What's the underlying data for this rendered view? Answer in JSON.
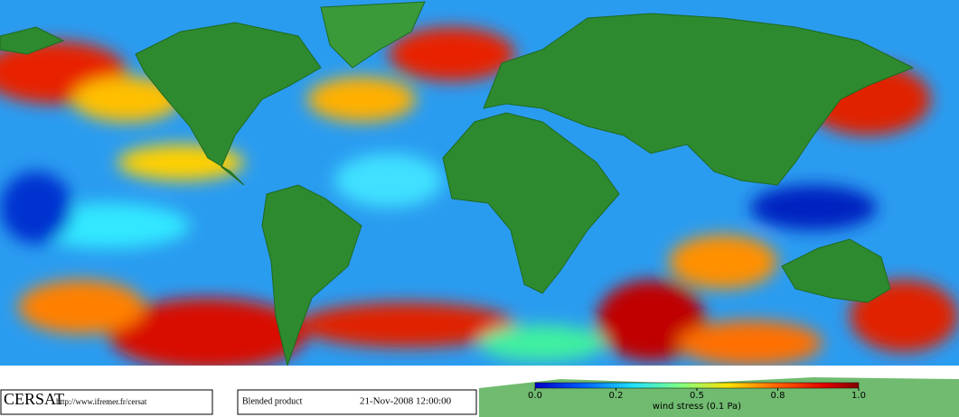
{
  "footer": {
    "logo": "CERSAT",
    "url": "http://www.ifremer.fr/cersat",
    "product": "Blended product",
    "date": "21-Nov-2008 12:00:00"
  },
  "colorbar": {
    "ticks": [
      {
        "value": 0,
        "label": "0.0"
      },
      0.2,
      0.5,
      0.8,
      {
        "value": 1,
        "label": "1.0"
      }
    ],
    "label": "wind stress (0.1 Pa)"
  }
}
